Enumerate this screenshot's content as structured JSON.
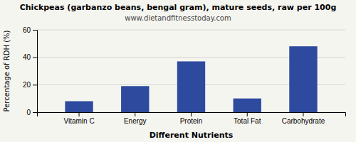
{
  "chart_data": {
    "type": "bar",
    "title": "Chickpeas (garbanzo beans, bengal gram), mature seeds, raw per 100g",
    "subtitle": "www.dietandfitnesstoday.com",
    "xlabel": "Different Nutrients",
    "ylabel": "Percentage of RDH (%)",
    "categories": [
      "Vitamin C",
      "Energy",
      "Protein",
      "Total Fat",
      "Carbohydrate"
    ],
    "values": [
      8,
      19,
      37,
      10,
      48
    ],
    "color": "#2e4a9e",
    "ylim": [
      0,
      60
    ],
    "yticks": [
      0,
      20,
      40,
      60
    ],
    "grid": true
  }
}
